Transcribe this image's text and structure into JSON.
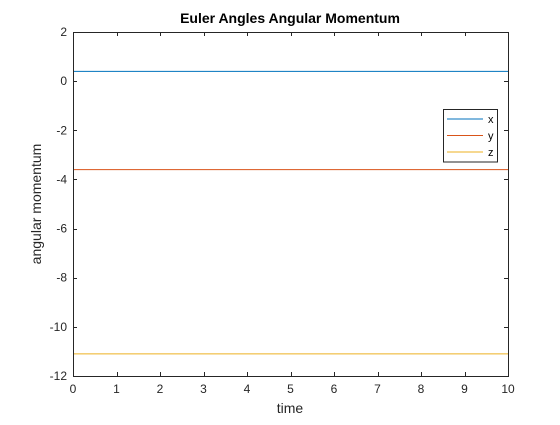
{
  "chart_data": {
    "type": "line",
    "title": "Euler Angles Angular Momentum",
    "xlabel": "time",
    "ylabel": "angular momentum",
    "xlim": [
      0,
      10
    ],
    "ylim": [
      -12,
      2
    ],
    "xticks": [
      0,
      1,
      2,
      3,
      4,
      5,
      6,
      7,
      8,
      9,
      10
    ],
    "yticks": [
      2,
      0,
      -2,
      -4,
      -6,
      -8,
      -10,
      -12
    ],
    "grid": false,
    "legend_position": "right",
    "series": [
      {
        "name": "x",
        "color": "#0072BD",
        "x": [
          0,
          10
        ],
        "y": [
          0.4,
          0.4
        ]
      },
      {
        "name": "y",
        "color": "#D95319",
        "x": [
          0,
          10
        ],
        "y": [
          -3.6,
          -3.6
        ]
      },
      {
        "name": "z",
        "color": "#EDB120",
        "x": [
          0,
          10
        ],
        "y": [
          -11.1,
          -11.1
        ]
      }
    ]
  }
}
